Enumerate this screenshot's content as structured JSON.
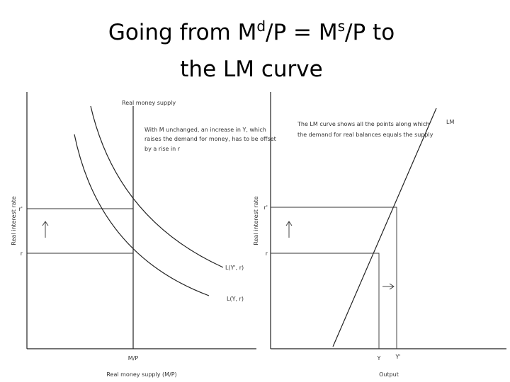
{
  "title": {
    "line1": [
      "Going from M",
      "d",
      "/P = M",
      "s",
      "/P to"
    ],
    "line2": "the LM curve"
  },
  "left_panel": {
    "top_label": "Real money supply",
    "note": [
      "With M unchanged, an increase in Y, which",
      "raises the demand for money, has to be offset",
      "by a rise in r"
    ],
    "y_label": "Real interest rate",
    "r_high": "r'",
    "r_low": "r",
    "curve_high": "L(Y', r)",
    "curve_low": "L(Y, r)",
    "x_tick": "M/P",
    "x_label": "Real money supply (M/P)"
  },
  "right_panel": {
    "note": [
      "The LM curve shows all the points along which",
      "the demand for real balances equals the supply"
    ],
    "curve": "LM",
    "y_label": "Real interest rate",
    "r_high": "r'",
    "r_low": "r",
    "x_tick_low": "Y",
    "x_tick_high": "Y'",
    "x_label": "Output"
  }
}
